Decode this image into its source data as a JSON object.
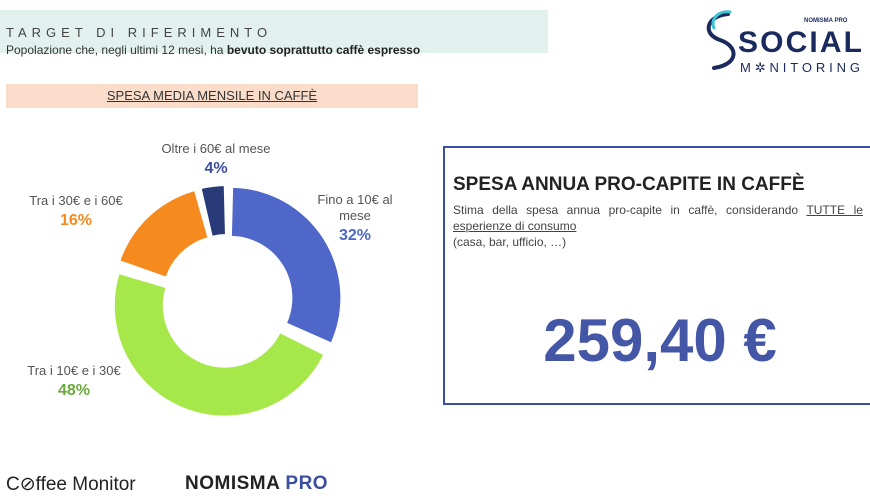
{
  "target": {
    "title": "TARGET DI RIFERIMENTO",
    "desc_prefix": "Popolazione che, negli ultimi 12 mesi, ha",
    "desc_bold": "bevuto soprattutto caffè espresso"
  },
  "logo": {
    "pro": "NOMISMA PRO",
    "social": "SOCIAL",
    "monitoring": "M✲NITORING"
  },
  "section_label": "SPESA MEDIA MENSILE IN CAFFÈ",
  "chart_data": {
    "type": "pie",
    "donut": true,
    "categories": [
      "Fino a 10€ al mese",
      "Tra i 10€ e i 30€",
      "Tra i 30€ e i 60€",
      "Oltre i 60€ al mese"
    ],
    "values": [
      32,
      48,
      16,
      4
    ],
    "value_labels": [
      "32%",
      "48%",
      "16%",
      "4%"
    ],
    "colors": [
      "#4f67c8",
      "#a6e84a",
      "#f58a1f",
      "#283a78"
    ],
    "label_colors": [
      "#4f67c8",
      "#6aa93a",
      "#f58a1f",
      "#3b4f9e"
    ],
    "label_lines": [
      [
        "Fino a 10€ al",
        "mese"
      ],
      [
        "Tra i 10€ e i 30€"
      ],
      [
        "Tra i 30€ e i 60€"
      ],
      [
        "Oltre i 60€ al mese"
      ]
    ]
  },
  "annual": {
    "title": "SPESA ANNUA PRO-CAPITE IN CAFFÈ",
    "desc_1": "Stima della spesa annua pro-capite in caffè, considerando",
    "desc_underlined": "TUTTE le esperienze di consumo",
    "desc_2": "(casa, bar, ufficio, …)",
    "value": "259,40 €"
  },
  "footer": {
    "coffee_monitor": "C⊘ffee Monitor",
    "nomisma": "NOMISMA",
    "pro": "PRO"
  }
}
